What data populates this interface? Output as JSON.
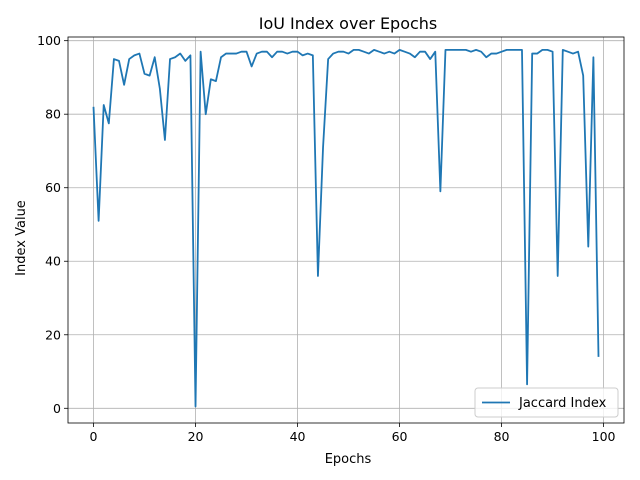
{
  "chart_data": {
    "type": "line",
    "title": "IoU Index over Epochs",
    "xlabel": "Epochs",
    "ylabel": "Index Value",
    "xlim": [
      -5,
      104
    ],
    "ylim": [
      -4,
      101
    ],
    "xticks": [
      0,
      20,
      40,
      60,
      80,
      100
    ],
    "yticks": [
      0,
      20,
      40,
      60,
      80,
      100
    ],
    "grid": true,
    "legend_position": "lower-right",
    "series": [
      {
        "name": "Jaccard Index",
        "color": "#1f77b4",
        "x": [
          0,
          1,
          2,
          3,
          4,
          5,
          6,
          7,
          8,
          9,
          10,
          11,
          12,
          13,
          14,
          15,
          16,
          17,
          18,
          19,
          20,
          21,
          22,
          23,
          24,
          25,
          26,
          27,
          28,
          29,
          30,
          31,
          32,
          33,
          34,
          35,
          36,
          37,
          38,
          39,
          40,
          41,
          42,
          43,
          44,
          45,
          46,
          47,
          48,
          49,
          50,
          51,
          52,
          53,
          54,
          55,
          56,
          57,
          58,
          59,
          60,
          61,
          62,
          63,
          64,
          65,
          66,
          67,
          68,
          69,
          70,
          71,
          72,
          73,
          74,
          75,
          76,
          77,
          78,
          79,
          80,
          81,
          82,
          83,
          84,
          85,
          86,
          87,
          88,
          89,
          90,
          91,
          92,
          93,
          94,
          95,
          96,
          97,
          98,
          99
        ],
        "values": [
          82,
          51,
          82.5,
          77.5,
          95,
          94.5,
          88,
          95,
          96,
          96.5,
          91,
          90.5,
          95.5,
          87,
          73,
          95,
          95.5,
          96.5,
          94.5,
          96,
          0.5,
          97,
          80,
          89.5,
          89,
          95.5,
          96.5,
          96.5,
          96.5,
          97,
          97,
          93,
          96.5,
          97,
          97,
          95.5,
          97,
          97,
          96.5,
          97,
          97,
          96,
          96.5,
          96,
          36,
          71,
          95,
          96.5,
          97,
          97,
          96.5,
          97.5,
          97.5,
          97,
          96.5,
          97.5,
          97,
          96.5,
          97,
          96.5,
          97.5,
          97,
          96.5,
          95.5,
          97,
          97,
          95,
          97,
          59,
          97.5,
          97.5,
          97.5,
          97.5,
          97.5,
          97,
          97.5,
          97,
          95.5,
          96.5,
          96.5,
          97,
          97.5,
          97.5,
          97.5,
          97.5,
          6.5,
          96.5,
          96.5,
          97.5,
          97.5,
          97,
          36,
          97.5,
          97,
          96.5,
          97,
          90.5,
          44,
          95.5,
          14
        ]
      }
    ]
  }
}
